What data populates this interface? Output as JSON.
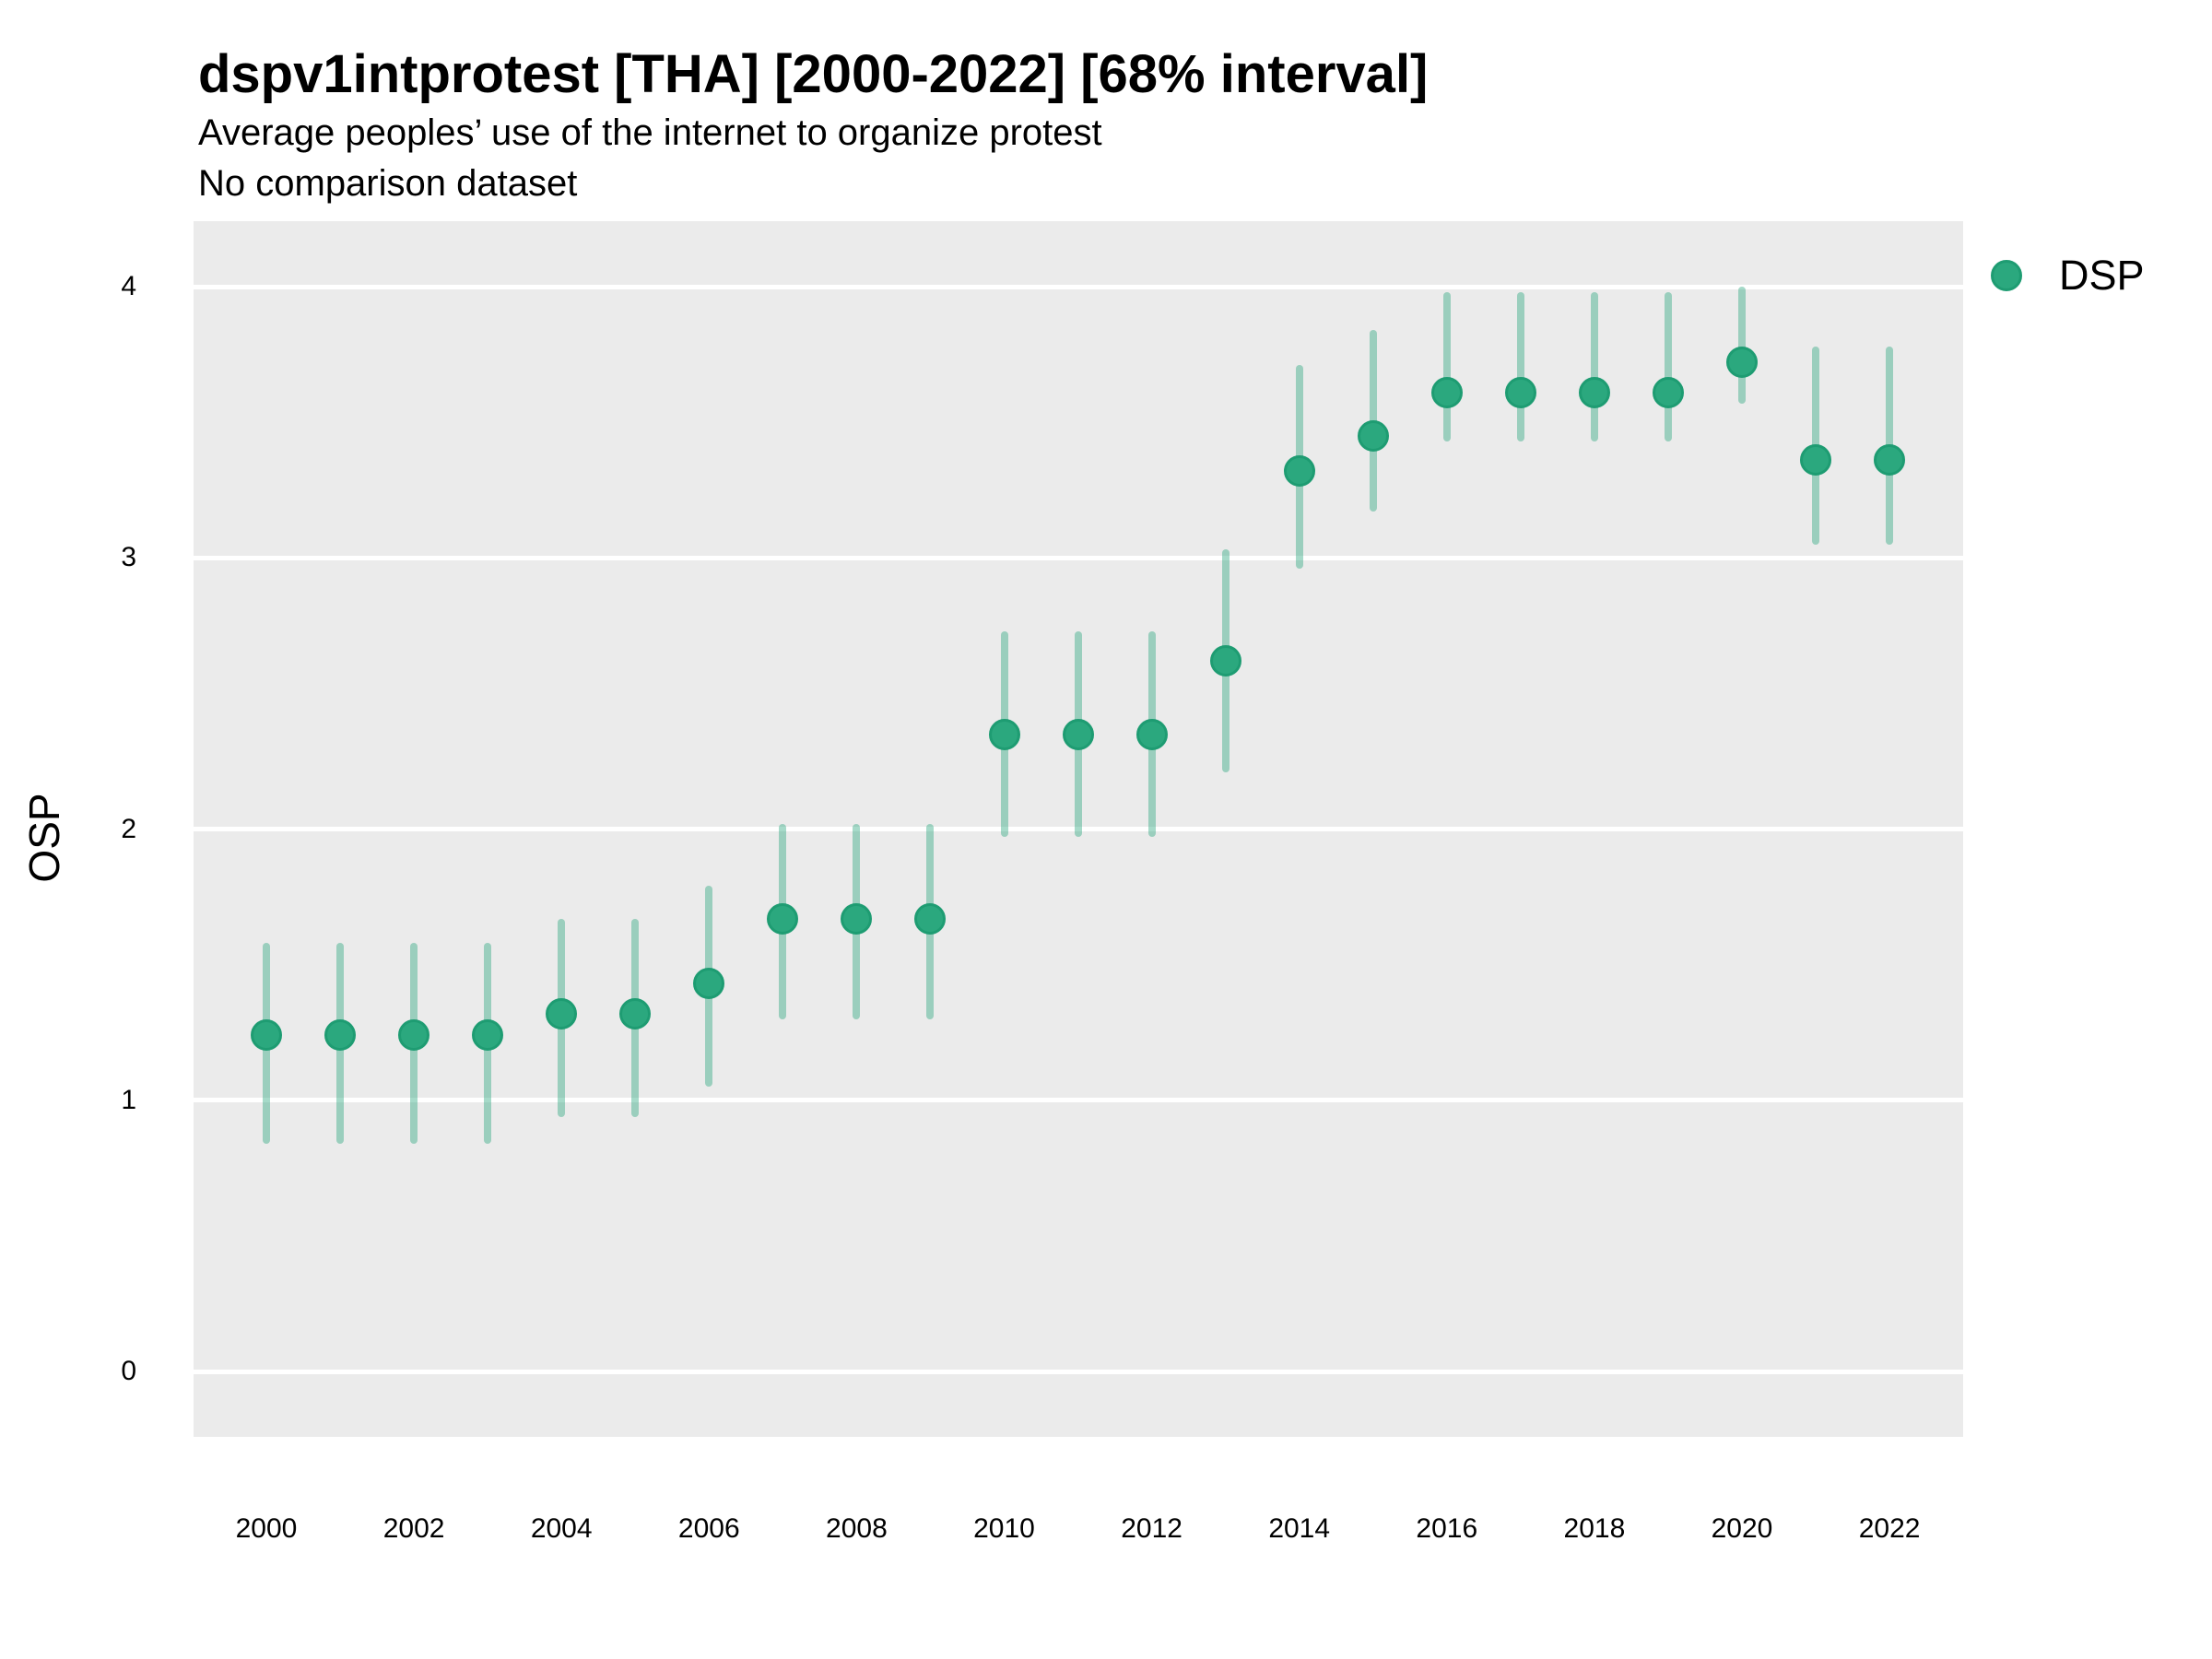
{
  "header": {
    "title": "dspv1intprotest [THA] [2000-2022] [68% interval]",
    "subtitle": "Average peoples’ use of the internet to organize protest",
    "note": "No comparison dataset"
  },
  "legend": {
    "label": "DSP"
  },
  "colors": {
    "point": "#2BA87E",
    "point_border": "#1E9C72",
    "interval": "rgba(43,168,126,0.42)",
    "panel": "#EBEBEB",
    "grid": "#FFFFFF",
    "text": "#000000"
  },
  "chart_data": {
    "type": "scatter",
    "title": "dspv1intprotest [THA] [2000-2022] [68% interval]",
    "subtitle": "Average peoples’ use of the internet to organize protest",
    "note": "No comparison dataset",
    "xlabel": "",
    "ylabel": "OSP",
    "interval_width": "68%",
    "ylim": [
      -0.25,
      4.25
    ],
    "xlim": [
      1999,
      2023
    ],
    "yticks": [
      0,
      1,
      2,
      3,
      4
    ],
    "xticks": [
      2000,
      2002,
      2004,
      2006,
      2008,
      2010,
      2012,
      2014,
      2016,
      2018,
      2020,
      2022
    ],
    "grid": "horizontal major gridlines, white on gray panel",
    "legend_position": "right",
    "series": [
      {
        "name": "DSP",
        "marker": "circle",
        "color": "#2BA87E",
        "interval_color": "rgba(43,168,126,0.42)",
        "x": [
          2000,
          2001,
          2002,
          2003,
          2004,
          2005,
          2006,
          2007,
          2008,
          2009,
          2010,
          2011,
          2012,
          2013,
          2014,
          2015,
          2016,
          2017,
          2018,
          2019,
          2020,
          2021,
          2022
        ],
        "values": [
          1.24,
          1.24,
          1.24,
          1.24,
          1.32,
          1.32,
          1.43,
          1.67,
          1.67,
          1.67,
          2.35,
          2.35,
          2.35,
          2.62,
          3.32,
          3.45,
          3.61,
          3.61,
          3.61,
          3.61,
          3.72,
          3.36,
          3.36
        ],
        "lo": [
          0.84,
          0.84,
          0.84,
          0.84,
          0.94,
          0.94,
          1.05,
          1.3,
          1.3,
          1.3,
          1.97,
          1.97,
          1.97,
          2.21,
          2.96,
          3.17,
          3.43,
          3.43,
          3.43,
          3.43,
          3.57,
          3.05,
          3.05
        ],
        "hi": [
          1.58,
          1.58,
          1.58,
          1.58,
          1.67,
          1.67,
          1.79,
          2.02,
          2.02,
          2.02,
          2.73,
          2.73,
          2.73,
          3.03,
          3.71,
          3.84,
          3.98,
          3.98,
          3.98,
          3.98,
          4.0,
          3.78,
          3.78
        ]
      }
    ]
  }
}
